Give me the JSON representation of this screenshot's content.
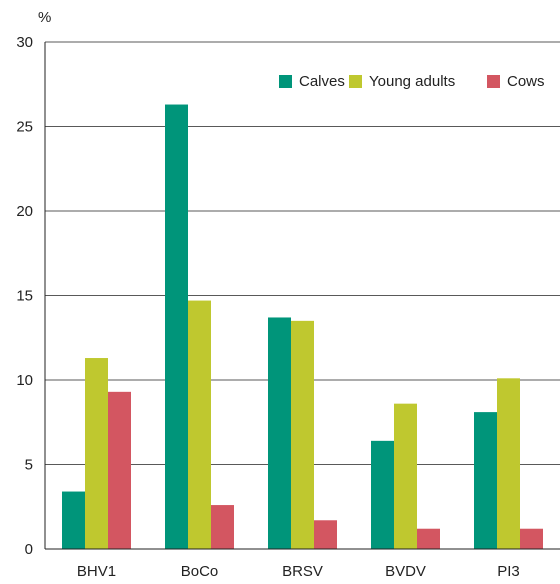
{
  "chart_data": {
    "type": "bar",
    "ylabel": "%",
    "ylim": [
      0,
      30
    ],
    "yticks": [
      0,
      5,
      10,
      15,
      20,
      25,
      30
    ],
    "grid": true,
    "legend_position": "top-right",
    "categories": [
      "BHV1",
      "BoCo",
      "BRSV",
      "BVDV",
      "PI3"
    ],
    "series": [
      {
        "name": "Calves",
        "color": "#00957a",
        "values": [
          3.4,
          26.3,
          13.7,
          6.4,
          8.1
        ]
      },
      {
        "name": "Young adults",
        "color": "#bfc82f",
        "values": [
          11.3,
          14.7,
          13.5,
          8.6,
          10.1
        ]
      },
      {
        "name": "Cows",
        "color": "#d35661",
        "values": [
          9.3,
          2.6,
          1.7,
          1.2,
          1.2
        ]
      }
    ]
  }
}
